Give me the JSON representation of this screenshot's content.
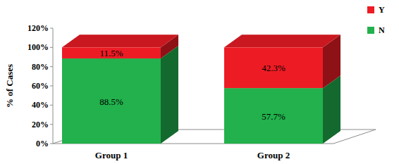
{
  "chart_data": {
    "type": "bar",
    "stacked": true,
    "data_labels": true,
    "legend": "top-right",
    "y_label": "% of Cases",
    "categories": [
      "Group 1",
      "Group 2"
    ],
    "series": [
      {
        "name": "N",
        "color": "#22b14c",
        "values": [
          88.5,
          57.7
        ],
        "value_labels": [
          "88.5%",
          "57.7%"
        ]
      },
      {
        "name": "Y",
        "color": "#ed1c24",
        "values": [
          11.5,
          42.3
        ],
        "value_labels": [
          "11.5%",
          "42.3%"
        ]
      }
    ],
    "ylim": [
      0,
      120
    ],
    "yticks": [
      {
        "value": 0,
        "label": "0%"
      },
      {
        "value": 20,
        "label": "20%"
      },
      {
        "value": 40,
        "label": "40%"
      },
      {
        "value": 60,
        "label": "60%"
      },
      {
        "value": 80,
        "label": "80%"
      },
      {
        "value": 100,
        "label": "100%"
      },
      {
        "value": 120,
        "label": "120%"
      }
    ]
  }
}
